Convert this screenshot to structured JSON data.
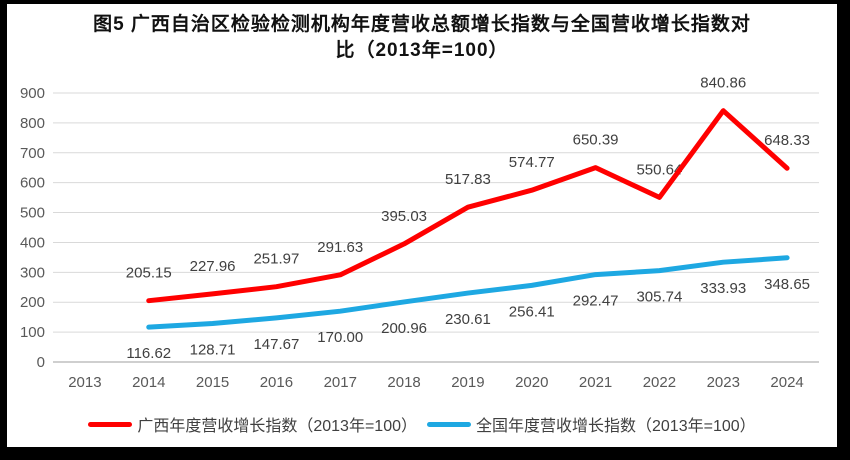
{
  "figure": {
    "title_lines": [
      "图5  广西自治区检验检测机构年度营收总额增长指数与全国营收增长指数对",
      "比（2013年=100）"
    ]
  },
  "chart_data": {
    "type": "line",
    "title": "图5 广西自治区检验检测机构年度营收总额增长指数与全国营收增长指数对比（2013年=100）",
    "categories": [
      "2013",
      "2014",
      "2015",
      "2016",
      "2017",
      "2018",
      "2019",
      "2020",
      "2021",
      "2022",
      "2023",
      "2024"
    ],
    "series": [
      {
        "name": "广西年度营收增长指数（2013年=100）",
        "color": "#FF0000",
        "label_position": "above",
        "values": [
          null,
          205.15,
          227.96,
          251.97,
          291.63,
          395.03,
          517.83,
          574.77,
          650.39,
          550.64,
          840.86,
          648.33
        ]
      },
      {
        "name": "全国年度营收增长指数（2013年=100）",
        "color": "#1EA8E2",
        "label_position": "below",
        "values": [
          null,
          116.62,
          128.71,
          147.67,
          170.0,
          200.96,
          230.61,
          256.41,
          292.47,
          305.74,
          333.93,
          348.65
        ]
      }
    ],
    "xlabel": "",
    "ylabel": "",
    "ylim": [
      0,
      900
    ],
    "ytick_step": 100,
    "grid": true,
    "data_labels": true,
    "legend_position": "bottom"
  },
  "colors": {
    "grid": "#D9D9D9",
    "axis_line": "#BFBFBF",
    "axis_text": "#595959",
    "label_text": "#404040",
    "title_text": "#111111",
    "background": "#FFFFFF",
    "frame": "#000000"
  }
}
